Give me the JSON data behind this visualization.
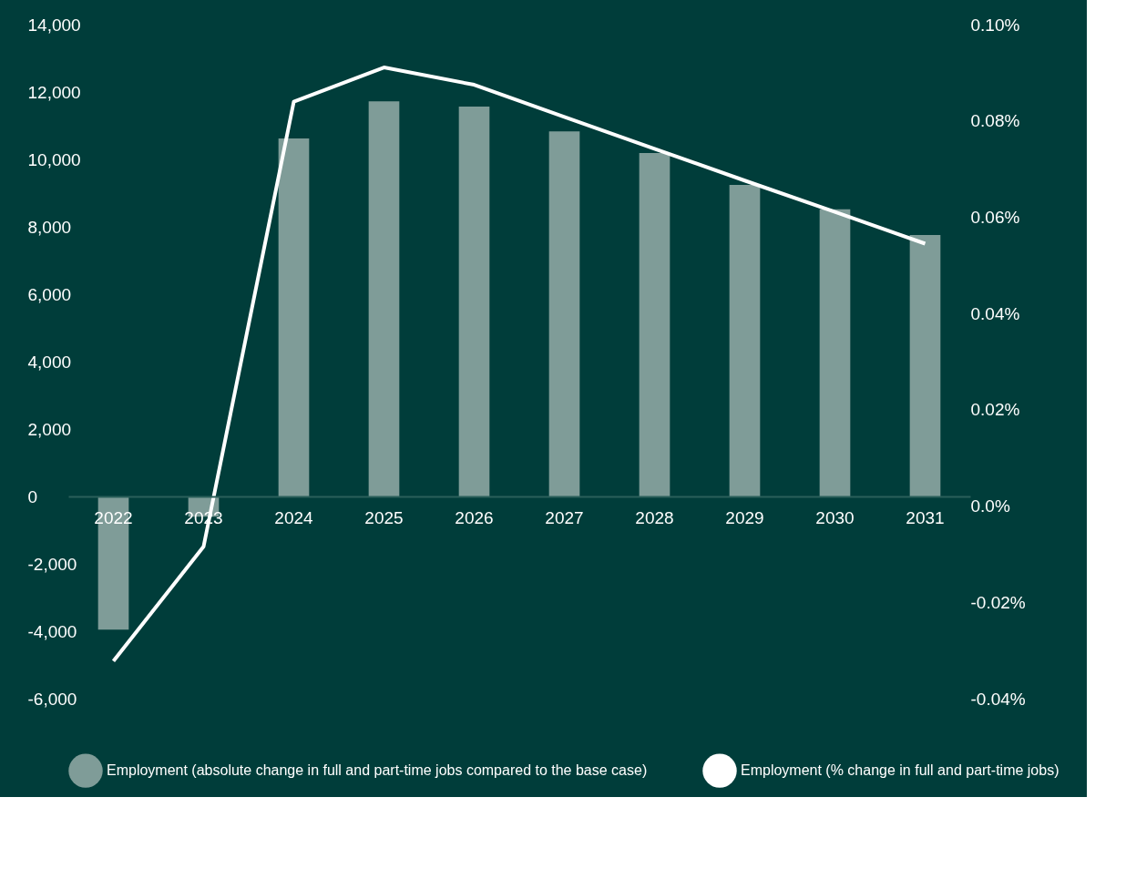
{
  "chart_data": {
    "type": "bar",
    "categories": [
      "2022",
      "2023",
      "2024",
      "2025",
      "2026",
      "2027",
      "2028",
      "2029",
      "2030",
      "2031"
    ],
    "series": [
      {
        "name": "Employment (absolute change in full and part-time jobs compared to the base case)",
        "color": "#7f9c98",
        "values": [
          -3950,
          -600,
          10620,
          11720,
          11570,
          10830,
          10190,
          9240,
          8520,
          7760
        ]
      },
      {
        "name": "Employment (% change in full and part-time jobs)",
        "type": "line",
        "axis": "y2",
        "color": "#ffffff",
        "values": [
          -0.0322,
          -0.0084,
          0.084,
          0.0911,
          0.0875,
          0.0808,
          0.0742,
          0.0676,
          0.0611,
          0.0545
        ]
      }
    ],
    "ylim": [
      -6000,
      14000
    ],
    "yticks": [
      {
        "value": -6000,
        "label": "-6,000"
      },
      {
        "value": -4000,
        "label": "-4,000"
      },
      {
        "value": -2000,
        "label": "-2,000"
      },
      0,
      {
        "value": 2000,
        "label": "2,000"
      },
      {
        "value": 4000,
        "label": "4,000"
      },
      {
        "value": 6000,
        "label": "6,000"
      },
      {
        "value": 8000,
        "label": "8,000"
      },
      {
        "value": 10000,
        "label": "10,000"
      },
      {
        "value": 12000,
        "label": "12,000"
      },
      {
        "value": 14000,
        "label": "14,000"
      }
    ],
    "y2lim": [
      -0.04,
      0.1
    ],
    "y2ticks": [
      {
        "value": -0.04,
        "label": "-0.04%"
      },
      {
        "value": -0.02,
        "label": "-0.02%"
      },
      {
        "value": 0,
        "label": "0.0%"
      },
      {
        "value": 0.02,
        "label": "0.02%"
      },
      {
        "value": 0.04,
        "label": "0.04%"
      },
      {
        "value": 0.06,
        "label": "0.06%"
      },
      {
        "value": 0.08,
        "label": "0.08%"
      },
      {
        "value": 0.1,
        "label": "0.10%"
      }
    ],
    "grid": false,
    "legend": "bottom",
    "line_style": "solid",
    "marker": "none"
  }
}
